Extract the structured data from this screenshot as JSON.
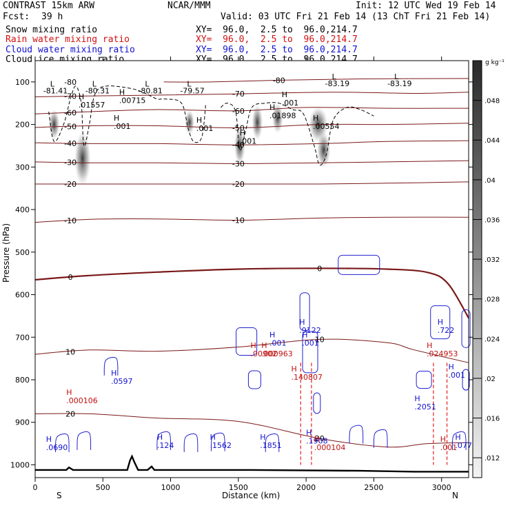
{
  "header": {
    "model": "CONTRAST 15km ARW",
    "forecast_label": "Fcst:",
    "forecast_hours": "39 h",
    "center": "NCAR/MMM",
    "init": "Init: 12 UTC Wed 19 Feb 14",
    "valid": "Valid: 03 UTC Fri 21 Feb 14 (13 ChT Fri 21 Feb 14)",
    "fields": [
      {
        "label": "Snow mixing ratio",
        "xy": "XY=  96.0,  2.5 to  96.0,214.7",
        "color": "#000000"
      },
      {
        "label": "Rain water mixing ratio",
        "xy": "XY=  96.0,  2.5 to  96.0,214.7",
        "color": "#d01010"
      },
      {
        "label": "Cloud water mixing ratio",
        "xy": "XY=  96.0,  2.5 to  96.0,214.7",
        "color": "#1010d0"
      },
      {
        "label": "Cloud ice mixing ratio",
        "xy": "XY=  96.0,  2.5 to  96.0,214.7",
        "color": "#000000"
      }
    ]
  },
  "chart_data": {
    "type": "cross-section",
    "xlabel": "Distance (km)",
    "ylabel": "Pressure (hPa)",
    "xlim": [
      0,
      3200
    ],
    "ylim": [
      1030,
      50
    ],
    "x_ticks": [
      0,
      500,
      1000,
      1500,
      2000,
      2500,
      3000
    ],
    "y_ticks": [
      100,
      200,
      300,
      400,
      500,
      600,
      700,
      800,
      900,
      1000
    ],
    "end_labels": {
      "left": "S",
      "right": "N"
    },
    "colorbar": {
      "unit": "g kg⁻¹",
      "ticks": [
        ".048",
        ".044",
        ".04",
        ".036",
        ".032",
        ".028",
        ".024",
        ".02",
        ".016",
        ".012"
      ],
      "tick_values": [
        0.048,
        0.044,
        0.04,
        0.036,
        0.032,
        0.028,
        0.024,
        0.02,
        0.016,
        0.012
      ],
      "range": [
        0.01,
        0.052
      ]
    },
    "temperature_contours": [
      {
        "label": "-80",
        "points": [
          [
            950,
            100
          ],
          [
            1300,
            100
          ],
          [
            1800,
            96
          ],
          [
            2400,
            93
          ],
          [
            3200,
            92
          ]
        ]
      },
      {
        "label": "-70",
        "points": [
          [
            0,
            135
          ],
          [
            400,
            133
          ],
          [
            900,
            131
          ],
          [
            1500,
            128
          ],
          [
            2200,
            124
          ],
          [
            2800,
            127
          ],
          [
            3200,
            124
          ]
        ]
      },
      {
        "label": "-60",
        "points": [
          [
            0,
            175
          ],
          [
            400,
            170
          ],
          [
            900,
            165
          ],
          [
            1500,
            168
          ],
          [
            2000,
            160
          ],
          [
            2600,
            162
          ],
          [
            3200,
            162
          ]
        ]
      },
      {
        "label": "-50",
        "points": [
          [
            0,
            207
          ],
          [
            400,
            203
          ],
          [
            900,
            203
          ],
          [
            1500,
            208
          ],
          [
            2100,
            200
          ],
          [
            2600,
            200
          ],
          [
            3200,
            197
          ]
        ]
      },
      {
        "label": "-40",
        "points": [
          [
            0,
            243
          ],
          [
            400,
            245
          ],
          [
            900,
            245
          ],
          [
            1500,
            248
          ],
          [
            2100,
            245
          ],
          [
            2600,
            240
          ],
          [
            3200,
            238
          ]
        ]
      },
      {
        "label": "-30",
        "points": [
          [
            0,
            288
          ],
          [
            400,
            290
          ],
          [
            900,
            290
          ],
          [
            1500,
            292
          ],
          [
            2100,
            290
          ],
          [
            2600,
            288
          ],
          [
            3200,
            285
          ]
        ]
      },
      {
        "label": "-20",
        "points": [
          [
            0,
            340
          ],
          [
            400,
            340
          ],
          [
            900,
            340
          ],
          [
            1500,
            340
          ],
          [
            2100,
            340
          ],
          [
            2600,
            338
          ],
          [
            3200,
            335
          ]
        ]
      },
      {
        "label": "-10",
        "points": [
          [
            0,
            430
          ],
          [
            400,
            423
          ],
          [
            900,
            422
          ],
          [
            1500,
            425
          ],
          [
            2100,
            420
          ],
          [
            2600,
            418
          ],
          [
            3200,
            418
          ]
        ]
      },
      {
        "label": "0",
        "points": [
          [
            0,
            565
          ],
          [
            400,
            555
          ],
          [
            900,
            547
          ],
          [
            1500,
            540
          ],
          [
            2100,
            538
          ],
          [
            2600,
            540
          ],
          [
            2900,
            548
          ],
          [
            3050,
            575
          ],
          [
            3200,
            655
          ]
        ]
      },
      {
        "label": "10",
        "points": [
          [
            0,
            740
          ],
          [
            400,
            730
          ],
          [
            900,
            733
          ],
          [
            1500,
            723
          ],
          [
            2100,
            705
          ],
          [
            2600,
            713
          ],
          [
            2800,
            730
          ],
          [
            3200,
            760
          ]
        ]
      },
      {
        "label": "20",
        "points": [
          [
            0,
            880
          ],
          [
            400,
            880
          ],
          [
            900,
            890
          ],
          [
            1500,
            898
          ],
          [
            2100,
            938
          ],
          [
            2600,
            958
          ],
          [
            2900,
            950
          ],
          [
            3200,
            948
          ]
        ]
      }
    ],
    "snow_maxima": [
      ".01557",
      ".00715",
      ".001",
      ".001",
      ".01898",
      ".001",
      ".00554",
      ".001"
    ],
    "cloud_ice_lows": [
      "-81.41",
      "-80.31",
      "-80.81",
      "-79.57",
      "-83.19",
      "-83.19"
    ],
    "cloud_water_maxima": [
      ".0690",
      ".0597",
      ".124",
      ".1562",
      ".1851",
      ".001",
      ".9122",
      ".001",
      ".1908",
      ".2051",
      ".722",
      ".001",
      ".077"
    ],
    "rain_maxima": [
      ".000106",
      ".00902",
      ".000963",
      ".140807",
      ".000104",
      ".024953",
      ".001"
    ]
  }
}
